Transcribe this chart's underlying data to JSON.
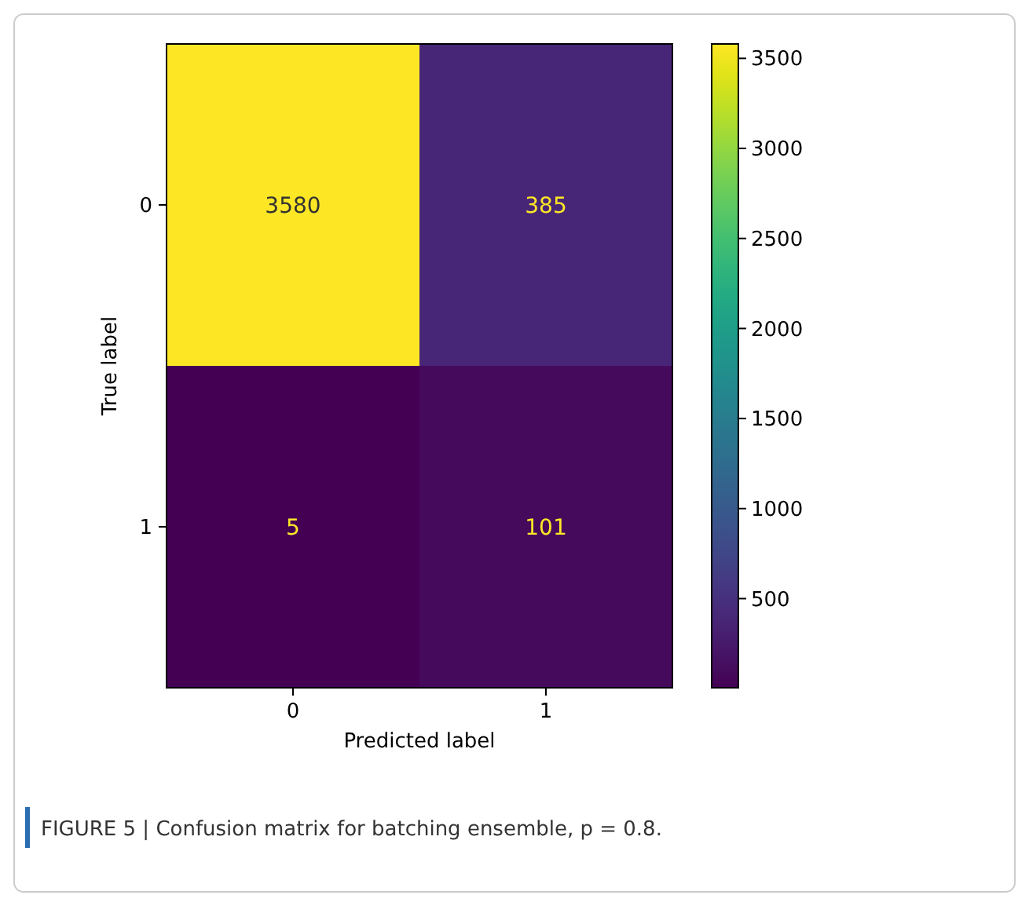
{
  "chart_data": {
    "type": "heatmap",
    "xlabel": "Predicted label",
    "ylabel": "True label",
    "categories": [
      "0",
      "1"
    ],
    "y_categories": [
      "0",
      "1"
    ],
    "cells": [
      [
        3580,
        385
      ],
      [
        5,
        101
      ]
    ],
    "clim": [
      5,
      3580
    ],
    "cticks": [
      500,
      1000,
      1500,
      2000,
      2500,
      3000,
      3500
    ],
    "data_labels": true,
    "annotations": [
      "FIGURE 5 | Confusion matrix for batching ensemble, p = 0.8."
    ]
  }
}
